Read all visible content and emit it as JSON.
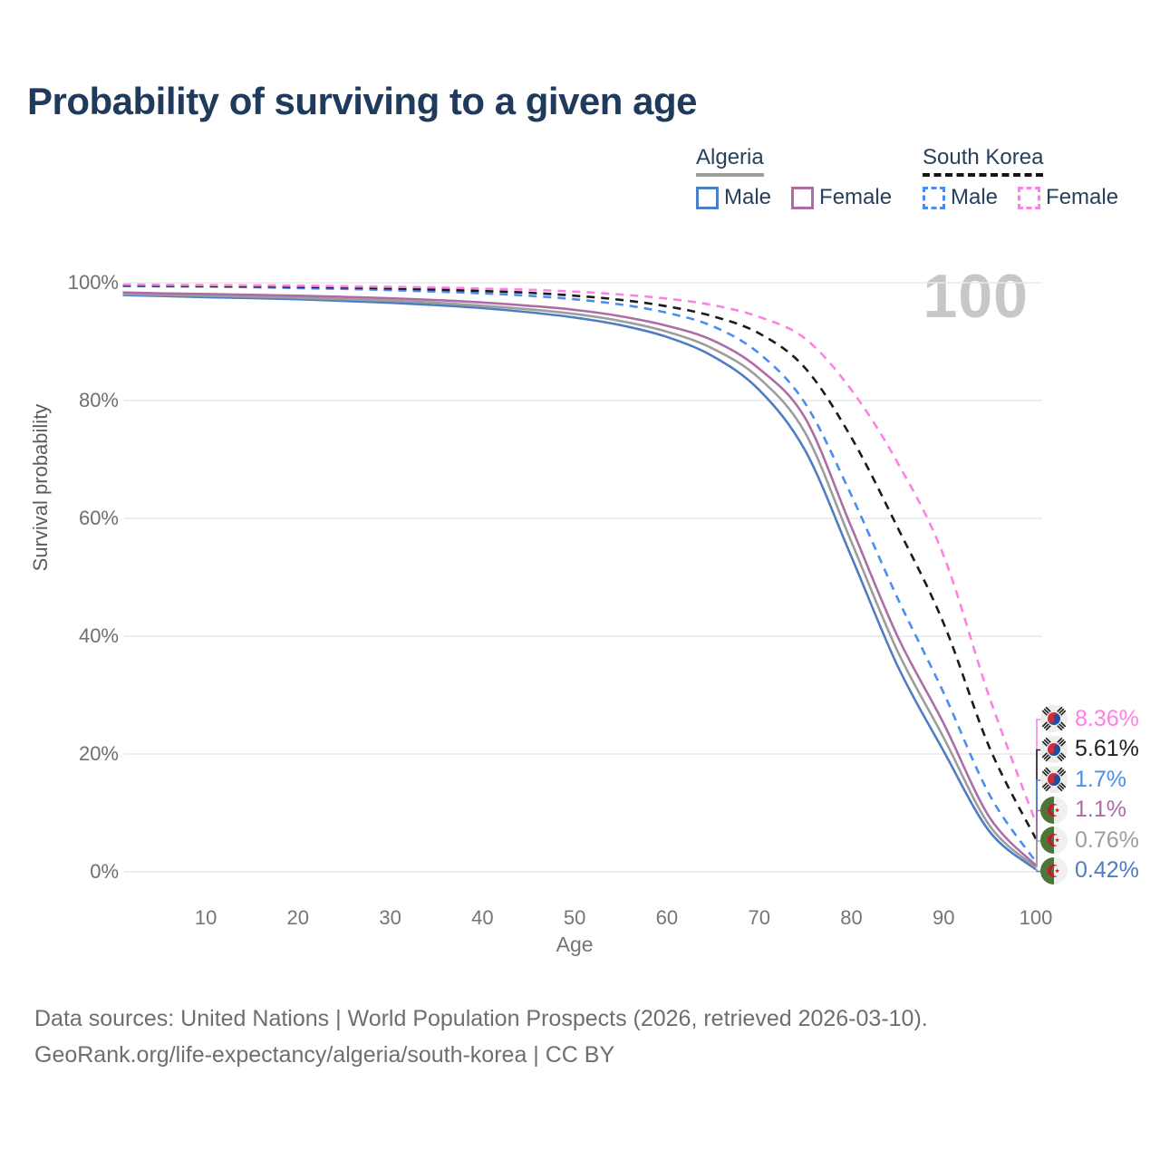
{
  "title": "Probability of surviving to a given age",
  "watermark": "100",
  "legend": {
    "groups": [
      {
        "label": "Algeria",
        "line_style": "solid",
        "underline_color": "#9d9d9d",
        "items": [
          {
            "label": "Male",
            "color": "#4d7ec3"
          },
          {
            "label": "Female",
            "color": "#ad6ca6"
          }
        ]
      },
      {
        "label": "South Korea",
        "line_style": "dashed",
        "underline_color": "#141414",
        "items": [
          {
            "label": "Male",
            "color": "#4a8df2"
          },
          {
            "label": "Female",
            "color": "#ff80e5"
          }
        ]
      }
    ]
  },
  "chart_data": {
    "type": "line",
    "title": "Probability of surviving to a given age",
    "xlabel": "Age",
    "ylabel": "Survival probability",
    "xlim": [
      0,
      100
    ],
    "ylim": [
      0,
      100
    ],
    "grid": "horizontal",
    "x_ticks": [
      10,
      20,
      30,
      40,
      50,
      60,
      70,
      80,
      90,
      100
    ],
    "y_ticks": [
      {
        "value": 0,
        "label": "0%"
      },
      {
        "value": 20,
        "label": "20%"
      },
      {
        "value": 40,
        "label": "40%"
      },
      {
        "value": 60,
        "label": "60%"
      },
      {
        "value": 80,
        "label": "80%"
      },
      {
        "value": 100,
        "label": "100%"
      }
    ],
    "x": [
      1,
      5,
      10,
      15,
      20,
      25,
      30,
      35,
      40,
      45,
      50,
      55,
      60,
      65,
      70,
      75,
      80,
      85,
      90,
      95,
      100
    ],
    "series": [
      {
        "name": "Algeria Male",
        "country": "Algeria",
        "line_style": "solid",
        "color": "#4d7ec3",
        "values": [
          97.9,
          97.75,
          97.55,
          97.4,
          97.2,
          96.9,
          96.6,
          96.2,
          95.7,
          95.0,
          94.1,
          92.8,
          90.8,
          87.5,
          81.8,
          71.5,
          53.5,
          35.0,
          20.5,
          6.8,
          0.42
        ]
      },
      {
        "name": "Algeria (all)",
        "country": "Algeria",
        "line_style": "solid",
        "color": "#9d9d9d",
        "values": [
          98.1,
          97.95,
          97.8,
          97.65,
          97.45,
          97.2,
          96.95,
          96.6,
          96.1,
          95.5,
          94.7,
          93.5,
          91.7,
          88.8,
          83.8,
          74.5,
          56.0,
          37.5,
          22.8,
          7.8,
          0.76
        ]
      },
      {
        "name": "Algeria Female",
        "country": "Algeria",
        "line_style": "solid",
        "color": "#ad6ca6",
        "values": [
          98.35,
          98.2,
          98.1,
          97.95,
          97.8,
          97.6,
          97.35,
          97.05,
          96.65,
          96.1,
          95.4,
          94.3,
          92.7,
          90.2,
          85.4,
          77.0,
          58.5,
          40.0,
          25.2,
          9.2,
          1.1
        ]
      },
      {
        "name": "South Korea Male",
        "country": "South Korea",
        "line_style": "dashed",
        "color": "#4a8df2",
        "values": [
          99.45,
          99.4,
          99.35,
          99.25,
          99.1,
          98.95,
          98.75,
          98.5,
          98.2,
          97.8,
          97.2,
          96.3,
          94.9,
          92.6,
          88.0,
          79.5,
          63.9,
          46.5,
          30.4,
          13.0,
          1.7
        ]
      },
      {
        "name": "South Korea (all)",
        "country": "South Korea",
        "line_style": "dashed",
        "color": "#1b1b1b",
        "values": [
          99.55,
          99.5,
          99.45,
          99.4,
          99.3,
          99.2,
          99.05,
          98.85,
          98.6,
          98.3,
          97.8,
          97.1,
          96.0,
          94.3,
          91.4,
          85.5,
          73.7,
          58.5,
          42.2,
          21.0,
          5.61
        ]
      },
      {
        "name": "South Korea Female",
        "country": "South Korea",
        "line_style": "dashed",
        "color": "#ff80e5",
        "values": [
          99.7,
          99.65,
          99.6,
          99.55,
          99.5,
          99.4,
          99.3,
          99.2,
          99.0,
          98.8,
          98.5,
          98.0,
          97.3,
          96.2,
          94.2,
          90.5,
          81.8,
          69.5,
          53.7,
          29.5,
          8.36
        ]
      }
    ],
    "end_labels": [
      {
        "country": "South Korea",
        "flag": "kr",
        "value": 8.36,
        "display": "8.36%",
        "color": "#ff80e5"
      },
      {
        "country": "South Korea",
        "flag": "kr",
        "value": 5.61,
        "display": "5.61%",
        "color": "#222222"
      },
      {
        "country": "South Korea",
        "flag": "kr",
        "value": 1.7,
        "display": "1.7%",
        "color": "#4a8df2"
      },
      {
        "country": "Algeria",
        "flag": "dz",
        "value": 1.1,
        "display": "1.1%",
        "color": "#ad6ca6"
      },
      {
        "country": "Algeria",
        "flag": "dz",
        "value": 0.76,
        "display": "0.76%",
        "color": "#9d9d9d"
      },
      {
        "country": "Algeria",
        "flag": "dz",
        "value": 0.42,
        "display": "0.42%",
        "color": "#4d7ec3"
      }
    ]
  },
  "footer": {
    "line1": "Data sources: United Nations | World Population Prospects (2026, retrieved 2026-03-10).",
    "line2": "GeoRank.org/life-expectancy/algeria/south-korea | CC BY"
  }
}
